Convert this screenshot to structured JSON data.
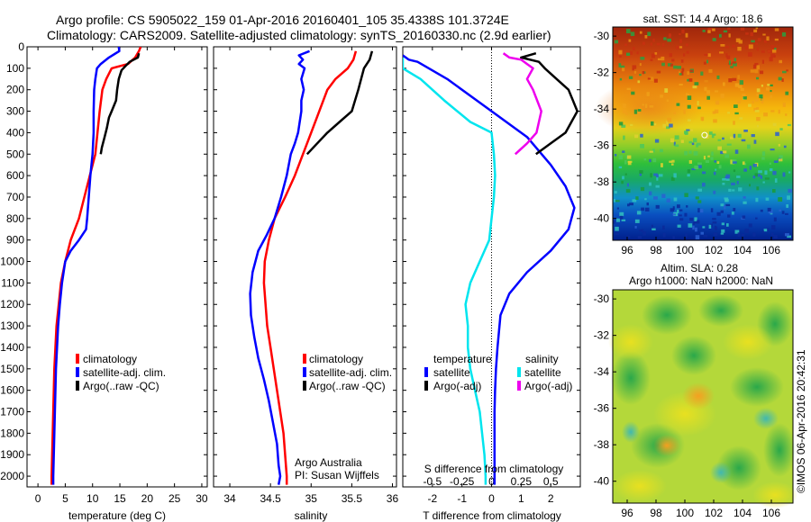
{
  "header": {
    "line1": "Argo profile: CS 5905022_159 01-Apr-2016 20160401_105 35.4338S 101.3724E",
    "line2": "Climatology: CARS2009. Satellite-adjusted climatology: synTS_20160330.nc (2.9d earlier)"
  },
  "credit": "©IMOS 06-Apr-2016 20:42:31",
  "colors": {
    "clim": "#ff0000",
    "sat": "#0000ff",
    "argo": "#000000",
    "sal_sat": "#00e5ee",
    "sal_argo": "#ee00ee"
  },
  "chart_data": [
    {
      "type": "line",
      "xlabel": "temperature (deg C)",
      "xlim": [
        -2,
        31
      ],
      "xticks": [
        0,
        5,
        10,
        15,
        20,
        25,
        30
      ],
      "ylim": [
        2050,
        0
      ],
      "yticks": [
        0,
        100,
        200,
        300,
        400,
        500,
        600,
        700,
        800,
        900,
        1000,
        1100,
        1200,
        1300,
        1400,
        1500,
        1600,
        1700,
        1800,
        1900,
        2000
      ],
      "legend": [
        "climatology",
        "satellite-adj. clim.",
        "Argo(..raw -QC)"
      ],
      "series": [
        {
          "name": "climatology",
          "color": "clim",
          "points": [
            [
              18.8,
              0
            ],
            [
              18.5,
              20
            ],
            [
              17.8,
              50
            ],
            [
              16.5,
              80
            ],
            [
              13.5,
              100
            ],
            [
              12.5,
              150
            ],
            [
              11.8,
              200
            ],
            [
              11.3,
              300
            ],
            [
              10.9,
              400
            ],
            [
              10.5,
              500
            ],
            [
              9.5,
              600
            ],
            [
              8.5,
              700
            ],
            [
              7.5,
              800
            ],
            [
              6.0,
              900
            ],
            [
              5.0,
              1000
            ],
            [
              4.2,
              1100
            ],
            [
              3.8,
              1200
            ],
            [
              3.4,
              1300
            ],
            [
              3.2,
              1400
            ],
            [
              3.0,
              1500
            ],
            [
              2.9,
              1600
            ],
            [
              2.8,
              1700
            ],
            [
              2.7,
              1800
            ],
            [
              2.6,
              1900
            ],
            [
              2.5,
              2000
            ],
            [
              2.5,
              2040
            ]
          ]
        },
        {
          "name": "satellite-adj. clim.",
          "color": "sat",
          "points": [
            [
              14.8,
              0
            ],
            [
              14.9,
              20
            ],
            [
              13.0,
              50
            ],
            [
              11.5,
              80
            ],
            [
              10.8,
              100
            ],
            [
              10.5,
              150
            ],
            [
              10.3,
              200
            ],
            [
              10.2,
              300
            ],
            [
              10.2,
              400
            ],
            [
              10.0,
              500
            ],
            [
              9.6,
              600
            ],
            [
              9.3,
              700
            ],
            [
              9.0,
              800
            ],
            [
              8.8,
              850
            ],
            [
              7.5,
              900
            ],
            [
              6.0,
              950
            ],
            [
              5.0,
              1000
            ],
            [
              4.4,
              1100
            ],
            [
              4.0,
              1200
            ],
            [
              3.7,
              1300
            ],
            [
              3.5,
              1400
            ],
            [
              3.3,
              1500
            ],
            [
              3.2,
              1600
            ],
            [
              3.1,
              1700
            ],
            [
              3.0,
              1800
            ],
            [
              2.9,
              1900
            ],
            [
              2.8,
              2000
            ],
            [
              2.8,
              2040
            ]
          ]
        },
        {
          "name": "Argo(..raw -QC)",
          "color": "argo",
          "points": [
            [
              18.5,
              30
            ],
            [
              18.3,
              50
            ],
            [
              16.8,
              70
            ],
            [
              16.0,
              90
            ],
            [
              15.3,
              110
            ],
            [
              14.8,
              150
            ],
            [
              14.5,
              200
            ],
            [
              14.3,
              250
            ],
            [
              13.5,
              300
            ],
            [
              13.0,
              330
            ],
            [
              12.6,
              380
            ],
            [
              12.2,
              420
            ],
            [
              11.7,
              470
            ],
            [
              11.5,
              500
            ]
          ]
        }
      ]
    },
    {
      "type": "line",
      "xlabel": "salinity",
      "xlim": [
        33.8,
        36.05
      ],
      "xticks": [
        34,
        34.5,
        35,
        35.5,
        36
      ],
      "legend": [
        "climatology",
        "satellite-adj. clim.",
        "Argo(..raw -QC)"
      ],
      "annotation": [
        "Argo Australia",
        "PI: Susan Wijffels"
      ],
      "series": [
        {
          "name": "climatology",
          "color": "clim",
          "points": [
            [
              35.55,
              20
            ],
            [
              35.52,
              60
            ],
            [
              35.45,
              100
            ],
            [
              35.3,
              150
            ],
            [
              35.2,
              200
            ],
            [
              35.1,
              300
            ],
            [
              35.0,
              400
            ],
            [
              34.9,
              500
            ],
            [
              34.8,
              600
            ],
            [
              34.68,
              700
            ],
            [
              34.55,
              800
            ],
            [
              34.48,
              900
            ],
            [
              34.43,
              1000
            ],
            [
              34.42,
              1100
            ],
            [
              34.44,
              1200
            ],
            [
              34.46,
              1300
            ],
            [
              34.5,
              1400
            ],
            [
              34.54,
              1500
            ],
            [
              34.58,
              1600
            ],
            [
              34.62,
              1700
            ],
            [
              34.66,
              1800
            ],
            [
              34.68,
              1900
            ],
            [
              34.7,
              2000
            ],
            [
              34.7,
              2040
            ]
          ]
        },
        {
          "name": "satellite-adj. clim.",
          "color": "sat",
          "points": [
            [
              34.98,
              20
            ],
            [
              34.85,
              40
            ],
            [
              34.9,
              60
            ],
            [
              34.85,
              80
            ],
            [
              34.92,
              100
            ],
            [
              34.88,
              150
            ],
            [
              34.91,
              200
            ],
            [
              34.88,
              250
            ],
            [
              34.88,
              300
            ],
            [
              34.84,
              400
            ],
            [
              34.8,
              450
            ],
            [
              34.75,
              500
            ],
            [
              34.7,
              600
            ],
            [
              34.63,
              700
            ],
            [
              34.55,
              800
            ],
            [
              34.45,
              880
            ],
            [
              34.35,
              950
            ],
            [
              34.28,
              1050
            ],
            [
              34.25,
              1150
            ],
            [
              34.26,
              1250
            ],
            [
              34.3,
              1350
            ],
            [
              34.35,
              1450
            ],
            [
              34.42,
              1550
            ],
            [
              34.48,
              1650
            ],
            [
              34.53,
              1750
            ],
            [
              34.58,
              1850
            ],
            [
              34.6,
              1950
            ],
            [
              34.62,
              2000
            ],
            [
              34.6,
              2040
            ]
          ]
        },
        {
          "name": "Argo(..raw -QC)",
          "color": "argo",
          "points": [
            [
              35.75,
              20
            ],
            [
              35.72,
              60
            ],
            [
              35.65,
              100
            ],
            [
              35.58,
              200
            ],
            [
              35.5,
              300
            ],
            [
              35.35,
              350
            ],
            [
              35.2,
              400
            ],
            [
              35.05,
              460
            ],
            [
              34.95,
              500
            ]
          ]
        }
      ]
    },
    {
      "type": "line",
      "xlabel": "T difference from climatology",
      "xlim": [
        -3.0,
        3.0
      ],
      "xticks": [
        -2,
        -1,
        0,
        1,
        2
      ],
      "x2label": "S difference from climatology",
      "x2lim": [
        -0.75,
        0.75
      ],
      "x2ticks": [
        -0.5,
        -0.25,
        0,
        0.25,
        0.5
      ],
      "legend_groups": [
        "temperature",
        "salinity"
      ],
      "legend": [
        "satellite",
        "Argo(-adj)",
        "satellite",
        "Argo(-adj)"
      ],
      "series": [
        {
          "name": "satellite",
          "group": "temperature",
          "color": "sat",
          "points": [
            [
              -3.0,
              40
            ],
            [
              -2.8,
              60
            ],
            [
              -2.5,
              70
            ],
            [
              -1.5,
              150
            ],
            [
              -0.5,
              250
            ],
            [
              0.5,
              350
            ],
            [
              1.2,
              420
            ],
            [
              2.0,
              550
            ],
            [
              2.5,
              650
            ],
            [
              2.8,
              750
            ],
            [
              2.6,
              850
            ],
            [
              2.0,
              950
            ],
            [
              1.2,
              1050
            ],
            [
              0.6,
              1150
            ],
            [
              0.3,
              1250
            ],
            [
              0.2,
              1400
            ],
            [
              0.15,
              1500
            ],
            [
              0.12,
              1600
            ],
            [
              0.1,
              1700
            ],
            [
              0.1,
              1800
            ],
            [
              0.1,
              1900
            ],
            [
              0.1,
              2000
            ],
            [
              0.1,
              2040
            ]
          ]
        },
        {
          "name": "Argo(-adj)",
          "group": "temperature",
          "color": "argo",
          "points": [
            [
              1.5,
              30
            ],
            [
              1.0,
              50
            ],
            [
              1.6,
              70
            ],
            [
              1.8,
              100
            ],
            [
              2.2,
              150
            ],
            [
              2.6,
              200
            ],
            [
              2.9,
              300
            ],
            [
              2.5,
              400
            ],
            [
              2.0,
              450
            ],
            [
              1.5,
              500
            ]
          ]
        },
        {
          "name": "satellite",
          "group": "salinity",
          "color": "sal_sat",
          "points": [
            [
              -0.75,
              50
            ],
            [
              -0.75,
              100
            ],
            [
              -0.6,
              150
            ],
            [
              -0.4,
              250
            ],
            [
              -0.18,
              350
            ],
            [
              0.0,
              400
            ],
            [
              0.02,
              500
            ],
            [
              0.03,
              600
            ],
            [
              0.02,
              700
            ],
            [
              -0.02,
              900
            ],
            [
              -0.1,
              1000
            ],
            [
              -0.18,
              1100
            ],
            [
              -0.22,
              1200
            ],
            [
              -0.2,
              1300
            ],
            [
              -0.2,
              1400
            ],
            [
              -0.18,
              1500
            ],
            [
              -0.14,
              1600
            ],
            [
              -0.1,
              1700
            ],
            [
              -0.08,
              1800
            ],
            [
              -0.06,
              1900
            ],
            [
              -0.05,
              2000
            ],
            [
              -0.05,
              2040
            ]
          ]
        },
        {
          "name": "Argo(-adj)",
          "group": "salinity",
          "color": "sal_argo",
          "points": [
            [
              0.1,
              30
            ],
            [
              0.15,
              50
            ],
            [
              0.25,
              60
            ],
            [
              0.3,
              80
            ],
            [
              0.35,
              100
            ],
            [
              0.3,
              150
            ],
            [
              0.35,
              200
            ],
            [
              0.42,
              300
            ],
            [
              0.38,
              400
            ],
            [
              0.3,
              450
            ],
            [
              0.2,
              500
            ]
          ]
        }
      ]
    },
    {
      "type": "heatmap",
      "title": "sat. SST: 14.4 Argo: 18.6",
      "xlim": [
        95,
        107.5
      ],
      "xticks": [
        96,
        98,
        100,
        102,
        104,
        106
      ],
      "ylim": [
        -41.2,
        -29.5
      ],
      "yticks": [
        -30,
        -32,
        -34,
        -36,
        -38,
        -40
      ],
      "marker": [
        101.37,
        -35.43
      ]
    },
    {
      "type": "heatmap",
      "title": [
        "Altim. SLA: 0.28",
        "Argo h1000: NaN h2000: NaN"
      ],
      "xlim": [
        95,
        107.5
      ],
      "xticks": [
        96,
        98,
        100,
        102,
        104,
        106
      ],
      "ylim": [
        -41.2,
        -29.5
      ],
      "yticks": [
        -30,
        -32,
        -34,
        -36,
        -38,
        -40
      ]
    }
  ]
}
